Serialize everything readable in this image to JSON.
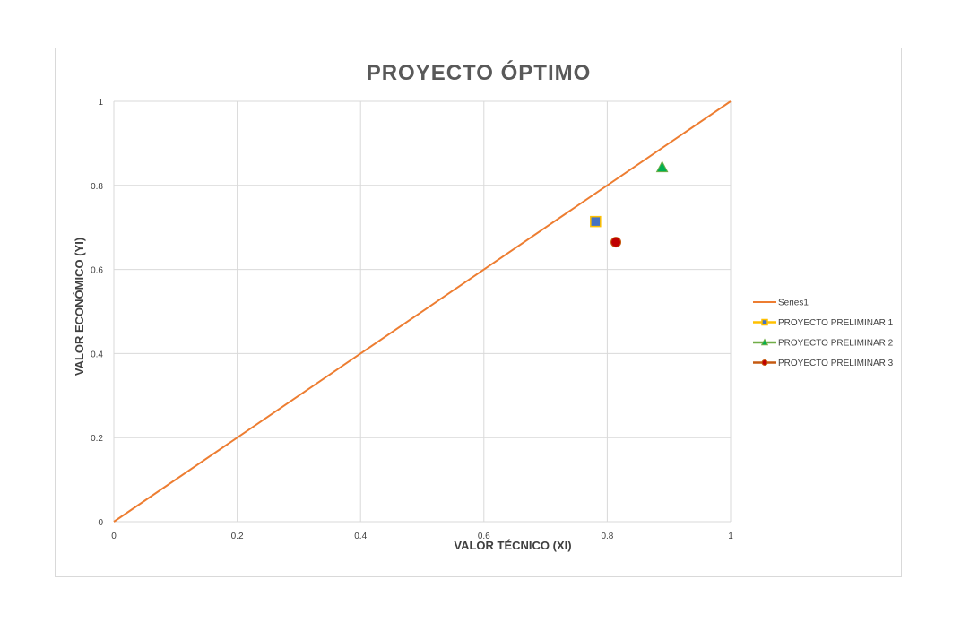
{
  "chart_data": {
    "type": "scatter",
    "title": "PROYECTO ÓPTIMO",
    "xlabel": "VALOR TÉCNICO (XI)",
    "ylabel": "VALOR ECONÓMICO (YI)",
    "xlim": [
      0,
      1
    ],
    "ylim": [
      0,
      1
    ],
    "x_ticks": [
      0,
      0.2,
      0.4,
      0.6,
      0.8,
      1
    ],
    "x_tick_labels": [
      "0",
      "0.2",
      "0.4",
      "0.6",
      "0.8",
      "1"
    ],
    "y_ticks": [
      0,
      0.2,
      0.4,
      0.6,
      0.8,
      1
    ],
    "y_tick_labels": [
      "0",
      "0.2",
      "0.4",
      "0.6",
      "0.8",
      "1"
    ],
    "grid": true,
    "legend_position": "right",
    "series": [
      {
        "name": "Series1",
        "kind": "line",
        "color": "#ed7d31",
        "points": [
          [
            0,
            0
          ],
          [
            1,
            1
          ]
        ]
      },
      {
        "name": "PROYECTO PRELIMINAR 1",
        "kind": "marker",
        "marker": "square",
        "color": "#4472c4",
        "edge_color": "#ffc000",
        "points": [
          [
            0.781,
            0.714
          ]
        ]
      },
      {
        "name": "PROYECTO PRELIMINAR 2",
        "kind": "marker",
        "marker": "triangle",
        "color": "#00b050",
        "edge_color": "#70ad47",
        "points": [
          [
            0.889,
            0.843
          ]
        ]
      },
      {
        "name": "PROYECTO PRELIMINAR 3",
        "kind": "marker",
        "marker": "circle",
        "color": "#c00000",
        "edge_color": "#c55a11",
        "points": [
          [
            0.814,
            0.665
          ]
        ]
      }
    ]
  }
}
